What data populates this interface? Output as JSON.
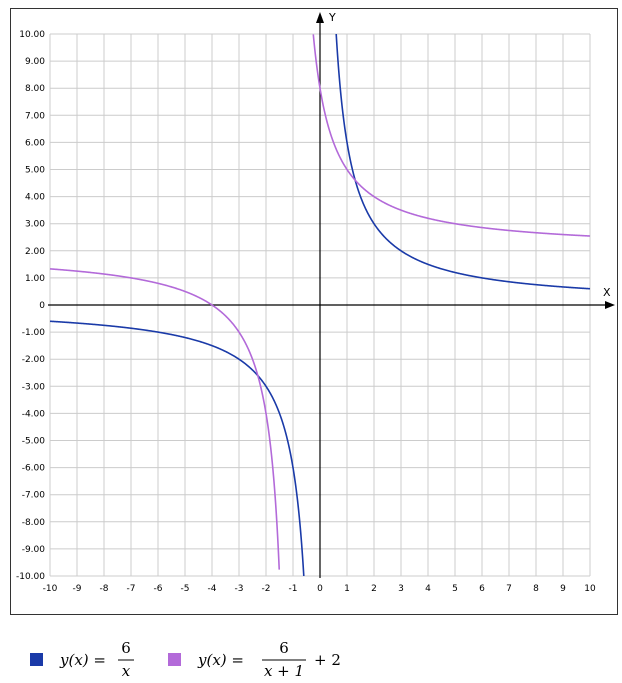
{
  "chart_data": {
    "type": "line",
    "xlabel": "X",
    "ylabel": "Y",
    "xlim": [
      -10,
      10
    ],
    "ylim": [
      -10,
      10
    ],
    "grid": true,
    "x_ticks": [
      "-10",
      "-9",
      "-8",
      "-7",
      "-6",
      "-5",
      "-4",
      "-3",
      "-2",
      "-1",
      "0",
      "1",
      "2",
      "3",
      "4",
      "5",
      "6",
      "7",
      "8",
      "9",
      "10"
    ],
    "y_ticks": [
      "10.00",
      "9.00",
      "8.00",
      "7.00",
      "6.00",
      "5.00",
      "4.00",
      "3.00",
      "2.00",
      "1.00",
      "0",
      "-1.00",
      "-2.00",
      "-3.00",
      "-4.00",
      "-5.00",
      "-6.00",
      "-7.00",
      "-8.00",
      "-9.00",
      "-10.00"
    ],
    "series": [
      {
        "name": "y(x) = 6/x",
        "color": "#1a3aa8",
        "function": "6/x",
        "asymptote_x": 0,
        "points_left": [
          [
            -10,
            -0.6
          ],
          [
            -8,
            -0.75
          ],
          [
            -6,
            -1.0
          ],
          [
            -5,
            -1.2
          ],
          [
            -4,
            -1.5
          ],
          [
            -3,
            -2.0
          ],
          [
            -2,
            -3.0
          ],
          [
            -1.5,
            -4.0
          ],
          [
            -1,
            -6.0
          ],
          [
            -0.75,
            -8.0
          ],
          [
            -0.6,
            -10.0
          ]
        ],
        "points_right": [
          [
            0.6,
            10.0
          ],
          [
            0.75,
            8.0
          ],
          [
            1,
            6.0
          ],
          [
            1.5,
            4.0
          ],
          [
            2,
            3.0
          ],
          [
            3,
            2.0
          ],
          [
            4,
            1.5
          ],
          [
            5,
            1.2
          ],
          [
            6,
            1.0
          ],
          [
            8,
            0.75
          ],
          [
            10,
            0.6
          ]
        ]
      },
      {
        "name": "y(x) = 6/(x+1) + 2",
        "color": "#b36ad9",
        "function": "6/(x+1)+2",
        "asymptote_x": -1,
        "points_left": [
          [
            -10,
            1.33
          ],
          [
            -8,
            1.14
          ],
          [
            -6,
            0.8
          ],
          [
            -5,
            0.5
          ],
          [
            -4,
            0.0
          ],
          [
            -3,
            -1.0
          ],
          [
            -2.5,
            -2.0
          ],
          [
            -2,
            -4.0
          ],
          [
            -1.75,
            -6.0
          ],
          [
            -1.6,
            -8.0
          ],
          [
            -1.5,
            -10.0
          ]
        ],
        "points_right": [
          [
            -0.25,
            10.0
          ],
          [
            0,
            8.0
          ],
          [
            0.5,
            6.0
          ],
          [
            1,
            5.0
          ],
          [
            2,
            4.0
          ],
          [
            3,
            3.5
          ],
          [
            5,
            3.0
          ],
          [
            7,
            2.75
          ],
          [
            10,
            2.55
          ]
        ]
      }
    ]
  },
  "legend": {
    "items": [
      {
        "color": "#1a3aa8",
        "lhs": "y(x) =",
        "num": "6",
        "den": "x",
        "suffix": ""
      },
      {
        "color": "#b36ad9",
        "lhs": "y(x) =",
        "num": "6",
        "den": "x + 1",
        "suffix": "+ 2"
      }
    ]
  }
}
